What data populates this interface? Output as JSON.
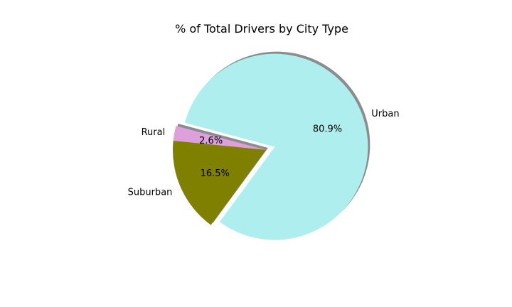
{
  "chart_data": {
    "type": "pie",
    "title": "% of Total Drivers by City Type",
    "slices": [
      {
        "label": "Rural",
        "value": 2.6,
        "pct_label": "2.6%",
        "color": "#DDA0DD",
        "explode": 0
      },
      {
        "label": "Suburban",
        "value": 16.5,
        "pct_label": "16.5%",
        "color": "#808000",
        "explode": 0
      },
      {
        "label": "Urban",
        "value": 80.9,
        "pct_label": "80.9%",
        "color": "#AFEEEE",
        "explode": 0.1
      }
    ],
    "start_angle": 165,
    "shadow": true,
    "legend": "none"
  }
}
